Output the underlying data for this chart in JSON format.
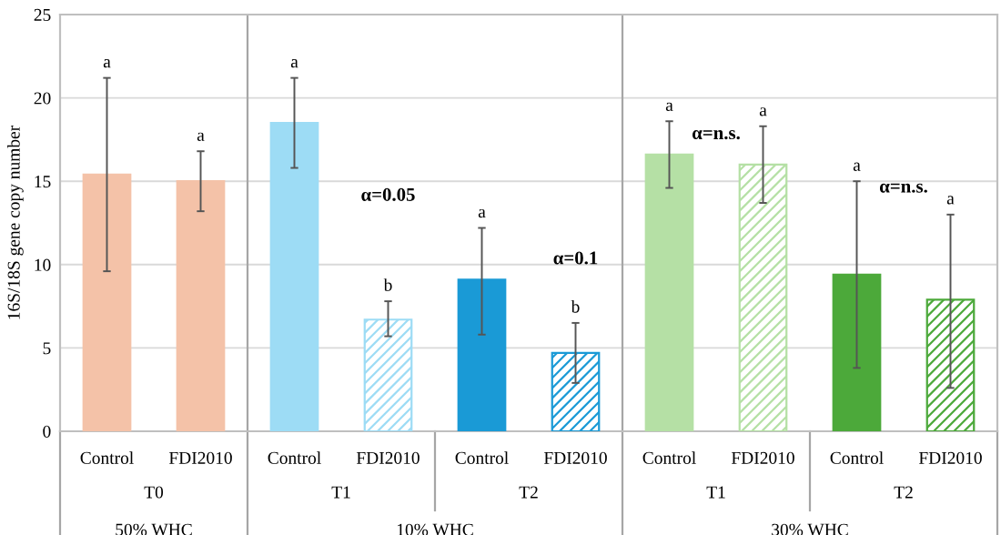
{
  "chart_data": {
    "type": "bar",
    "ylabel": "16S/18S gene copy number",
    "categories": [
      "Control",
      "FDI2010",
      "Control",
      "FDI2010",
      "Control",
      "FDI2010",
      "Control",
      "FDI2010",
      "Control",
      "FDI2010"
    ],
    "values": [
      15.4,
      15.0,
      18.5,
      6.7,
      9.1,
      4.7,
      16.6,
      16.0,
      9.4,
      7.9
    ],
    "colors": [
      "#f4c2a8",
      "#f4c2a8",
      "#9ddcf5",
      "#9ddcf5",
      "#1a9ad6",
      "#1a9ad6",
      "#b5e0a5",
      "#b5e0a5",
      "#4ca93a",
      "#4ca93a"
    ],
    "errors": [
      [
        9.6,
        21.2
      ],
      [
        13.2,
        16.8
      ],
      [
        15.8,
        21.2
      ],
      [
        5.7,
        7.8
      ],
      [
        5.8,
        12.2
      ],
      [
        2.9,
        6.5
      ],
      [
        14.6,
        18.6
      ],
      [
        13.7,
        18.3
      ],
      [
        3.8,
        15.0
      ],
      [
        2.6,
        13.0
      ]
    ],
    "annotations": [
      "a",
      "a",
      "a",
      "b",
      "a",
      "b",
      "a",
      "a",
      "a",
      "a",
      "α=0.05",
      "α=0.1",
      "α=n.s.",
      "α=n.s.",
      "T0",
      "T1",
      "T2",
      "T1",
      "T2",
      "50% WHC",
      "10% WHC",
      "30% WHC"
    ],
    "ylim": [
      0,
      25
    ],
    "yticks": [
      0,
      5,
      10,
      15,
      20,
      25
    ],
    "grid": "y"
  }
}
